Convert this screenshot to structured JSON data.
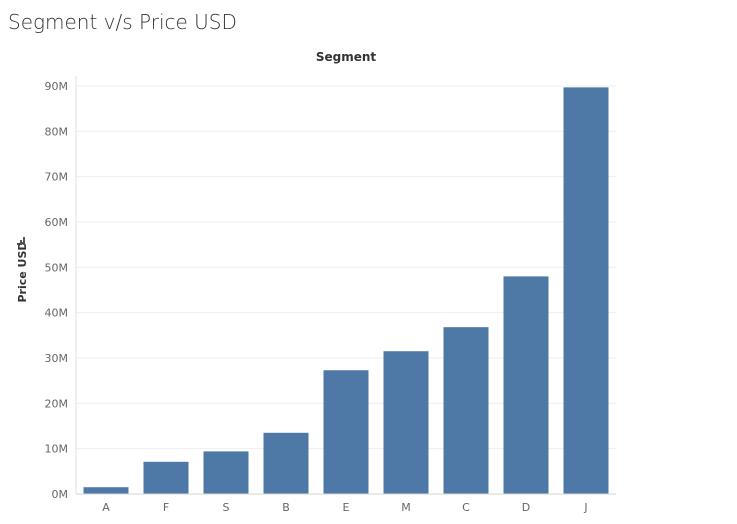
{
  "title": "Segment v/s Price USD",
  "chart_data": {
    "type": "bar",
    "title": "Segment v/s Price USD",
    "column_header": "Segment",
    "xlabel": "",
    "ylabel": "Price USD",
    "categories": [
      "A",
      "F",
      "S",
      "B",
      "E",
      "M",
      "C",
      "D",
      "J"
    ],
    "values": [
      1500000,
      7100000,
      9400000,
      13500000,
      27300000,
      31500000,
      36800000,
      48000000,
      89700000
    ],
    "value_unit": "USD",
    "ylim": [
      0,
      90000000
    ],
    "yticks": [
      0,
      10000000,
      20000000,
      30000000,
      40000000,
      50000000,
      60000000,
      70000000,
      80000000,
      90000000
    ],
    "ytick_labels": [
      "0M",
      "10M",
      "20M",
      "30M",
      "40M",
      "50M",
      "60M",
      "70M",
      "80M",
      "90M"
    ],
    "grid": true,
    "legend": "none",
    "bar_color": "#4e79a7"
  }
}
